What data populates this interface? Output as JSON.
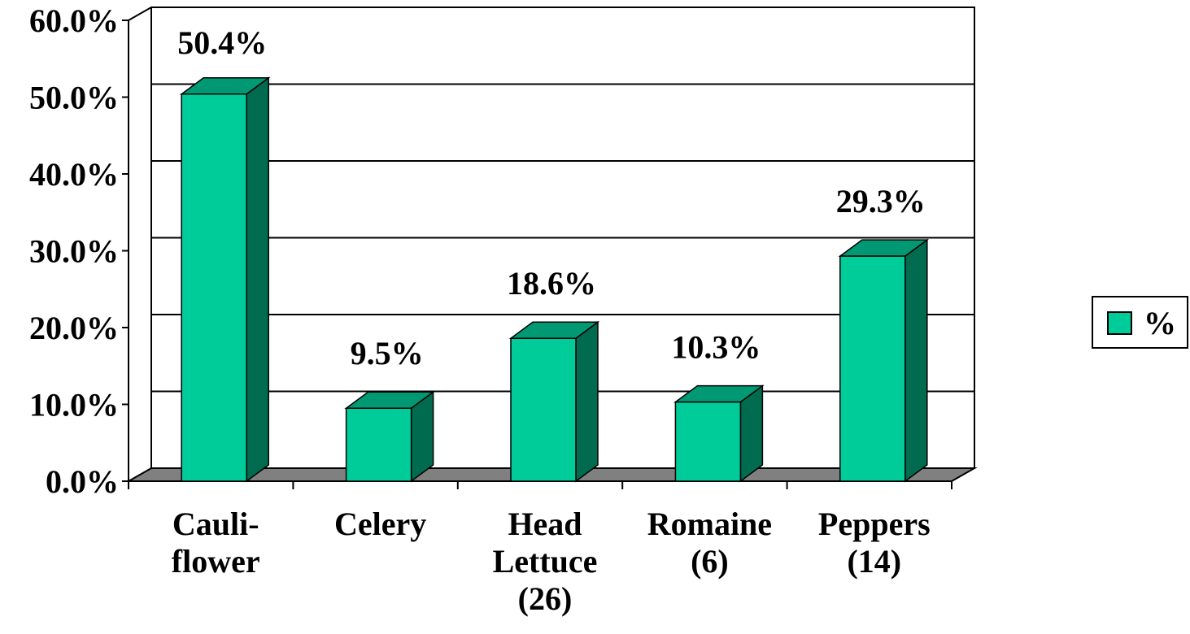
{
  "chart_data": {
    "type": "bar3d",
    "categories": [
      "Cauli-\nflower",
      "Celery",
      "Head\nLettuce\n(26)",
      "Romaine\n(6)",
      "Peppers\n(14)"
    ],
    "series": [
      {
        "name": "%",
        "color": "#00cc99",
        "values": [
          50.4,
          9.5,
          18.6,
          10.3,
          29.3
        ],
        "value_labels": [
          "50.4%",
          "9.5%",
          "18.6%",
          "10.3%",
          "29.3%"
        ]
      }
    ],
    "ylim": [
      0,
      60
    ],
    "yticks": [
      {
        "value": 0,
        "label": "0.0%"
      },
      {
        "value": 10,
        "label": "10.0%"
      },
      {
        "value": 20,
        "label": "20.0%"
      },
      {
        "value": 30,
        "label": "30.0%"
      },
      {
        "value": 40,
        "label": "40.0%"
      },
      {
        "value": 50,
        "label": "50.0%"
      },
      {
        "value": 60,
        "label": "60.0%"
      }
    ],
    "grid": true,
    "legend": "right"
  }
}
